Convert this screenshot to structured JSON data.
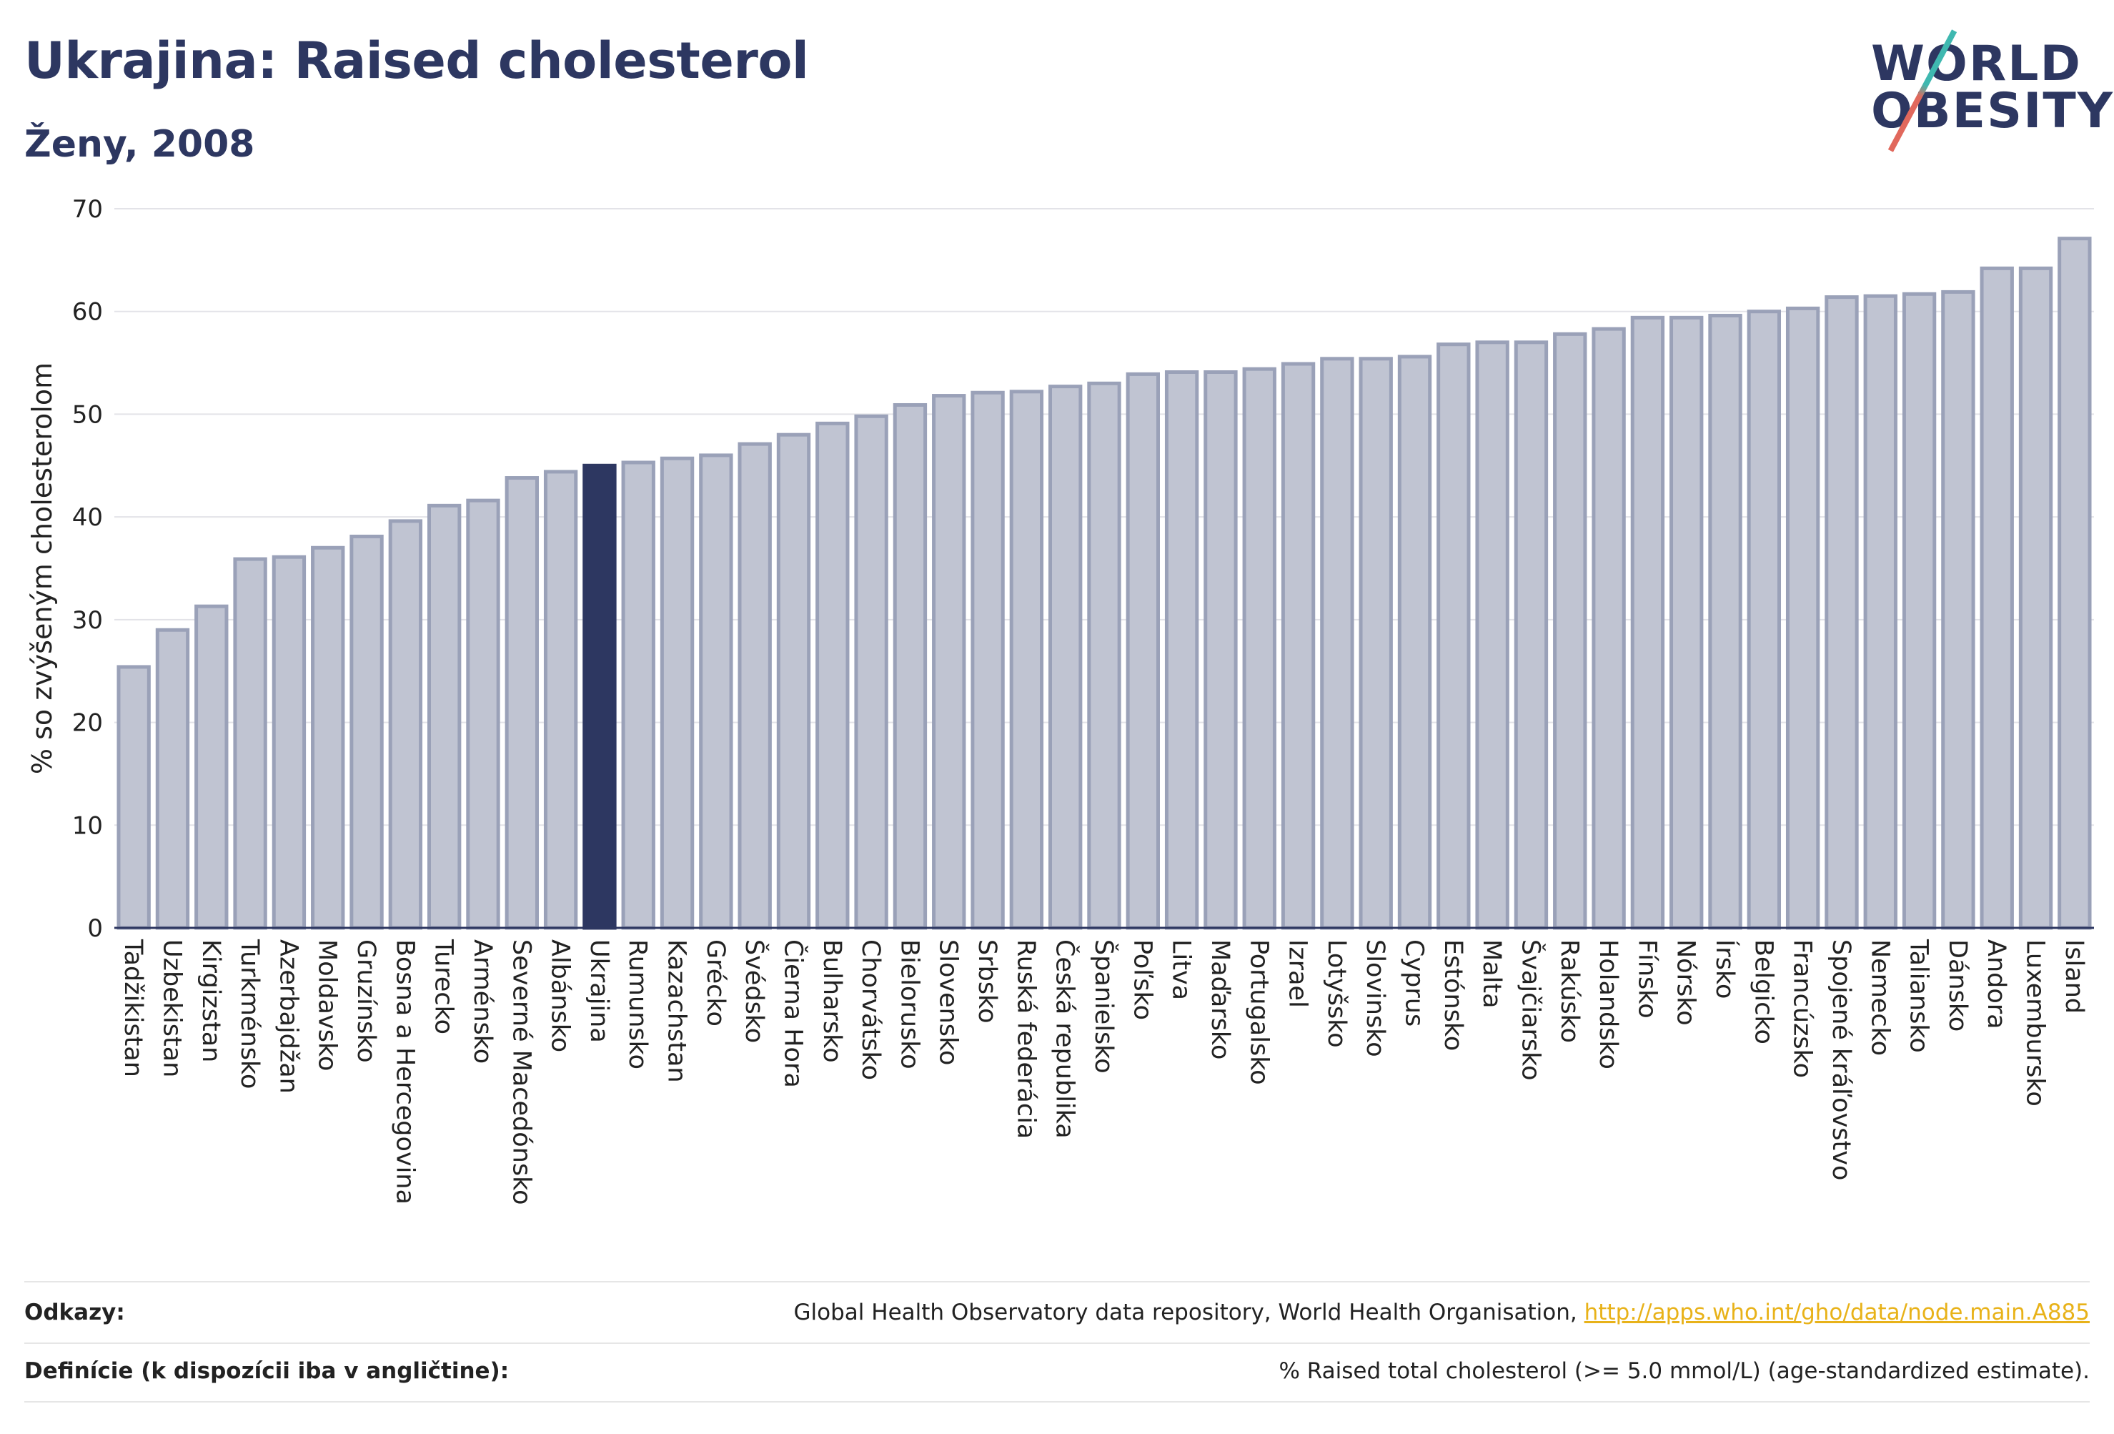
{
  "header": {
    "title": "Ukrajina: Raised cholesterol",
    "subtitle": "Ženy, 2008"
  },
  "logo": {
    "line1": "WORLD",
    "line2": "OBESITY"
  },
  "chart_data": {
    "type": "bar",
    "ylabel": "% so zvýšeným cholesterolom",
    "xlabel": "",
    "ylim": [
      0,
      70
    ],
    "yticks": [
      0,
      10,
      20,
      30,
      40,
      50,
      60,
      70
    ],
    "grid": true,
    "highlight": "Ukrajina",
    "colors": {
      "bar": "#c0c4d2",
      "bar_edge": "#9aa1b8",
      "highlight": "#2d3761",
      "grid": "#e3e3e8",
      "axis": "#2d3761"
    },
    "categories": [
      "Tadžikistan",
      "Uzbekistan",
      "Kirgizstan",
      "Turkménsko",
      "Azerbajdžan",
      "Moldavsko",
      "Gruzínsko",
      "Bosna a Hercegovina",
      "Turecko",
      "Arménsko",
      "Severné Macedónsko",
      "Albánsko",
      "Ukrajina",
      "Rumunsko",
      "Kazachstan",
      "Grécko",
      "Švédsko",
      "Čierna Hora",
      "Bulharsko",
      "Chorvátsko",
      "Bielorusko",
      "Slovensko",
      "Srbsko",
      "Ruská federácia",
      "Česká republika",
      "Španielsko",
      "Poľsko",
      "Litva",
      "Maďarsko",
      "Portugalsko",
      "Izrael",
      "Lotyšsko",
      "Slovinsko",
      "Cyprus",
      "Estónsko",
      "Malta",
      "Švajčiarsko",
      "Rakúsko",
      "Holandsko",
      "Fínsko",
      "Nórsko",
      "Írsko",
      "Belgicko",
      "Francúzsko",
      "Spojené kráľovstvo",
      "Nemecko",
      "Taliansko",
      "Dánsko",
      "Andora",
      "Luxembursko",
      "Island"
    ],
    "values": [
      25.4,
      29.0,
      31.3,
      35.9,
      36.1,
      37.0,
      38.1,
      39.6,
      41.1,
      41.6,
      43.8,
      44.4,
      45.0,
      45.3,
      45.7,
      46.0,
      47.1,
      48.0,
      49.1,
      49.8,
      50.9,
      51.8,
      52.1,
      52.2,
      52.7,
      53.0,
      53.9,
      54.1,
      54.1,
      54.4,
      54.9,
      55.4,
      55.4,
      55.6,
      56.8,
      57.0,
      57.0,
      57.8,
      58.3,
      59.4,
      59.4,
      59.6,
      60.0,
      60.3,
      61.4,
      61.5,
      61.7,
      61.9,
      64.2,
      64.2,
      67.1
    ]
  },
  "footer": {
    "refs_label": "Odkazy:",
    "refs_text": "Global Health Observatory data repository, World Health Organisation,",
    "refs_link": "http://apps.who.int/gho/data/node.main.A885",
    "defs_label": "Definície (k dispozícii iba v angličtine):",
    "defs_text": "% Raised total cholesterol (>= 5.0 mmol/L) (age-standardized estimate)."
  }
}
